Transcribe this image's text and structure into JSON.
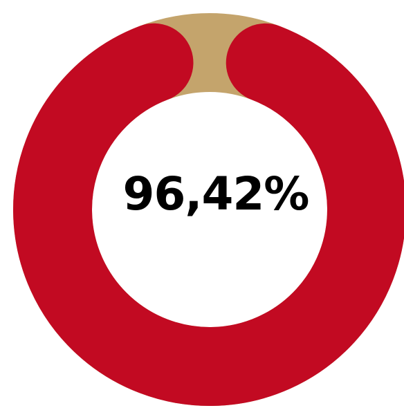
{
  "chart_data": {
    "type": "pie",
    "variant": "donut",
    "center_label": "96,42%",
    "slices": [
      {
        "value": 96.42,
        "color": "#C20A22"
      },
      {
        "value": 3.58,
        "color": "#C4A46C"
      }
    ],
    "title": "",
    "legend": "none"
  }
}
